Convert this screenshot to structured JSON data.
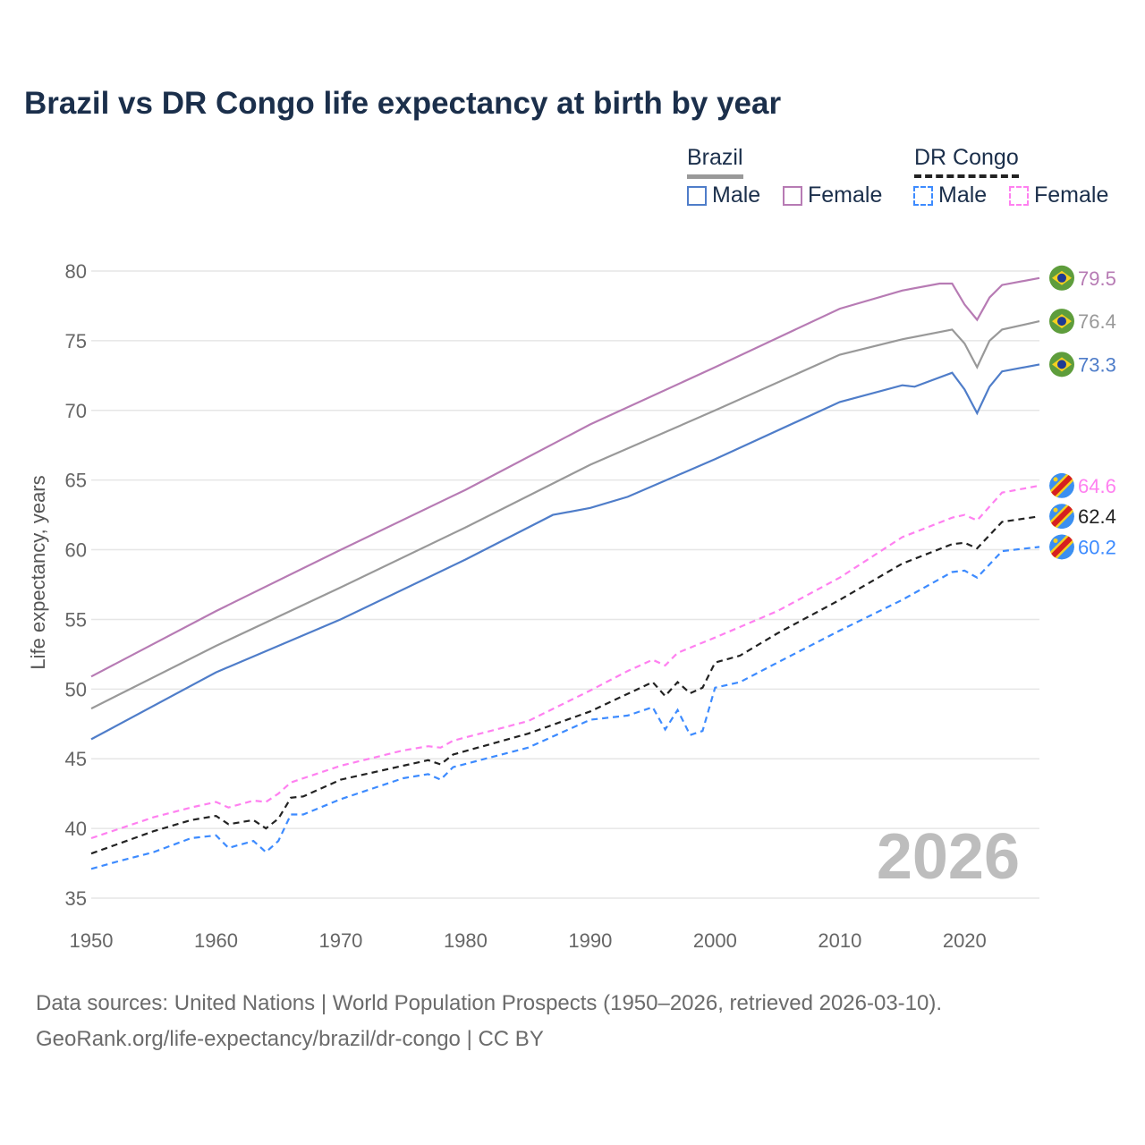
{
  "chart_data": {
    "type": "line",
    "title": "Brazil vs DR Congo life expectancy at birth by year",
    "xlabel": "",
    "ylabel": "Life expectancy, years",
    "xlim": [
      1950,
      2026
    ],
    "ylim": [
      35,
      81
    ],
    "x_ticks": [
      "1950",
      "1960",
      "1970",
      "1980",
      "1990",
      "2000",
      "2010",
      "2020"
    ],
    "y_ticks": [
      "35",
      "40",
      "45",
      "50",
      "55",
      "60",
      "65",
      "70",
      "75",
      "80"
    ],
    "grid": true,
    "watermark_year": "2026",
    "legend": {
      "placement": "top-right",
      "groups": [
        {
          "label": "Brazil",
          "items": [
            "Male",
            "Female"
          ]
        },
        {
          "label": "DR Congo",
          "items": [
            "Male",
            "Female"
          ]
        }
      ]
    },
    "series": [
      {
        "name": "Brazil Female",
        "color": "#b77bb4",
        "dashed": false,
        "end_label": "79.5",
        "points": [
          [
            1950,
            50.9
          ],
          [
            1960,
            55.6
          ],
          [
            1970,
            60
          ],
          [
            1980,
            64.3
          ],
          [
            1990,
            69
          ],
          [
            2000,
            73.1
          ],
          [
            2010,
            77.3
          ],
          [
            2015,
            78.6
          ],
          [
            2018,
            79.1
          ],
          [
            2019,
            79.1
          ],
          [
            2020,
            77.6
          ],
          [
            2021,
            76.5
          ],
          [
            2022,
            78.1
          ],
          [
            2023,
            79.0
          ],
          [
            2026,
            79.5
          ]
        ]
      },
      {
        "name": "Brazil Total",
        "color": "#999999",
        "dashed": false,
        "end_label": "76.4",
        "points": [
          [
            1950,
            48.6
          ],
          [
            1960,
            53.1
          ],
          [
            1970,
            57.3
          ],
          [
            1980,
            61.6
          ],
          [
            1990,
            66.1
          ],
          [
            2000,
            70
          ],
          [
            2010,
            74
          ],
          [
            2015,
            75.1
          ],
          [
            2019,
            75.8
          ],
          [
            2020,
            74.8
          ],
          [
            2021,
            73.1
          ],
          [
            2022,
            75
          ],
          [
            2023,
            75.8
          ],
          [
            2026,
            76.4
          ]
        ]
      },
      {
        "name": "Brazil Male",
        "color": "#4f7dc9",
        "dashed": false,
        "end_label": "73.3",
        "points": [
          [
            1950,
            46.4
          ],
          [
            1960,
            51.2
          ],
          [
            1970,
            55
          ],
          [
            1980,
            59.3
          ],
          [
            1987,
            62.5
          ],
          [
            1990,
            63
          ],
          [
            1993,
            63.8
          ],
          [
            2000,
            66.5
          ],
          [
            2010,
            70.6
          ],
          [
            2015,
            71.8
          ],
          [
            2016,
            71.7
          ],
          [
            2019,
            72.7
          ],
          [
            2020,
            71.5
          ],
          [
            2021,
            69.8
          ],
          [
            2022,
            71.7
          ],
          [
            2023,
            72.8
          ],
          [
            2026,
            73.3
          ]
        ]
      },
      {
        "name": "DR Congo Female",
        "color": "#ff80f0",
        "dashed": true,
        "end_label": "64.6",
        "points": [
          [
            1950,
            39.3
          ],
          [
            1955,
            40.8
          ],
          [
            1958,
            41.5
          ],
          [
            1960,
            41.9
          ],
          [
            1961,
            41.5
          ],
          [
            1963,
            42
          ],
          [
            1964,
            41.9
          ],
          [
            1965,
            42.5
          ],
          [
            1966,
            43.3
          ],
          [
            1970,
            44.5
          ],
          [
            1975,
            45.6
          ],
          [
            1977,
            45.9
          ],
          [
            1978,
            45.8
          ],
          [
            1979,
            46.3
          ],
          [
            1985,
            47.7
          ],
          [
            1990,
            49.9
          ],
          [
            1993,
            51.3
          ],
          [
            1995,
            52.1
          ],
          [
            1996,
            51.7
          ],
          [
            1997,
            52.6
          ],
          [
            2000,
            53.7
          ],
          [
            2005,
            55.6
          ],
          [
            2010,
            58
          ],
          [
            2015,
            60.9
          ],
          [
            2019,
            62.3
          ],
          [
            2020,
            62.5
          ],
          [
            2021,
            62.1
          ],
          [
            2023,
            64.1
          ],
          [
            2026,
            64.6
          ]
        ]
      },
      {
        "name": "DR Congo Total",
        "color": "#222222",
        "dashed": true,
        "end_label": "62.4",
        "points": [
          [
            1950,
            38.2
          ],
          [
            1955,
            39.8
          ],
          [
            1958,
            40.6
          ],
          [
            1960,
            40.9
          ],
          [
            1961,
            40.3
          ],
          [
            1963,
            40.6
          ],
          [
            1964,
            40
          ],
          [
            1965,
            40.7
          ],
          [
            1966,
            42.2
          ],
          [
            1967,
            42.3
          ],
          [
            1970,
            43.5
          ],
          [
            1975,
            44.5
          ],
          [
            1977,
            44.9
          ],
          [
            1978,
            44.6
          ],
          [
            1979,
            45.3
          ],
          [
            1985,
            46.8
          ],
          [
            1990,
            48.4
          ],
          [
            1995,
            50.5
          ],
          [
            1996,
            49.5
          ],
          [
            1997,
            50.5
          ],
          [
            1998,
            49.7
          ],
          [
            1999,
            50.1
          ],
          [
            2000,
            51.9
          ],
          [
            2002,
            52.4
          ],
          [
            2005,
            54
          ],
          [
            2010,
            56.4
          ],
          [
            2015,
            59
          ],
          [
            2019,
            60.4
          ],
          [
            2020,
            60.5
          ],
          [
            2021,
            60.1
          ],
          [
            2023,
            62
          ],
          [
            2026,
            62.4
          ]
        ]
      },
      {
        "name": "DR Congo Male",
        "color": "#3d8bff",
        "dashed": true,
        "end_label": "60.2",
        "points": [
          [
            1950,
            37.1
          ],
          [
            1952,
            37.6
          ],
          [
            1955,
            38.3
          ],
          [
            1958,
            39.3
          ],
          [
            1960,
            39.5
          ],
          [
            1961,
            38.6
          ],
          [
            1963,
            39.1
          ],
          [
            1964,
            38.3
          ],
          [
            1965,
            39.1
          ],
          [
            1966,
            41
          ],
          [
            1967,
            41
          ],
          [
            1970,
            42.1
          ],
          [
            1975,
            43.6
          ],
          [
            1977,
            43.9
          ],
          [
            1978,
            43.5
          ],
          [
            1979,
            44.4
          ],
          [
            1985,
            45.8
          ],
          [
            1990,
            47.8
          ],
          [
            1993,
            48.1
          ],
          [
            1995,
            48.7
          ],
          [
            1996,
            47.1
          ],
          [
            1997,
            48.5
          ],
          [
            1998,
            46.7
          ],
          [
            1999,
            47
          ],
          [
            2000,
            50.1
          ],
          [
            2002,
            50.5
          ],
          [
            2005,
            51.9
          ],
          [
            2010,
            54.2
          ],
          [
            2015,
            56.4
          ],
          [
            2019,
            58.4
          ],
          [
            2020,
            58.5
          ],
          [
            2021,
            58
          ],
          [
            2023,
            59.9
          ],
          [
            2026,
            60.2
          ]
        ]
      }
    ]
  },
  "footer": {
    "line1": "Data sources: United Nations | World Population Prospects (1950–2026, retrieved 2026-03-10).",
    "line2": "GeoRank.org/life-expectancy/brazil/dr-congo | CC BY"
  }
}
